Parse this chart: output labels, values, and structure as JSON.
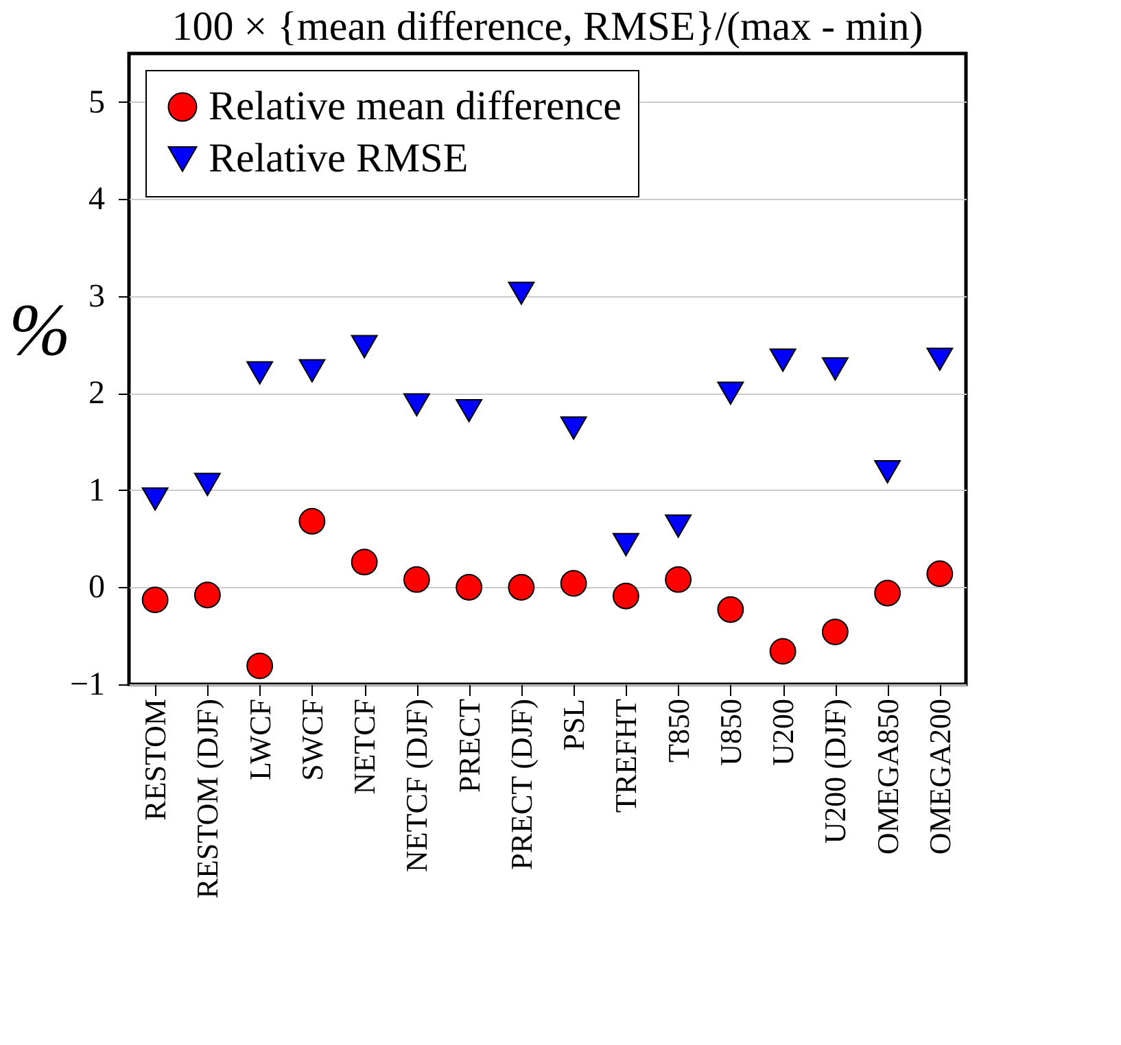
{
  "chart_data": {
    "type": "scatter",
    "title": "100 × {mean difference, RMSE}/(max - min)",
    "ylabel": "%",
    "categories": [
      "RESTOM",
      "RESTOM (DJF)",
      "LWCF",
      "SWCF",
      "NETCF",
      "NETCF (DJF)",
      "PRECT",
      "PRECT (DJF)",
      "PSL",
      "TREFHT",
      "T850",
      "U850",
      "U200",
      "U200 (DJF)",
      "OMEGA850",
      "OMEGA200"
    ],
    "series": [
      {
        "name": "Relative mean difference",
        "color": "#ff0000",
        "marker": "circle",
        "values": [
          -0.13,
          -0.08,
          -0.81,
          0.68,
          0.26,
          0.08,
          0.0,
          0.0,
          0.04,
          -0.09,
          0.08,
          -0.23,
          -0.66,
          -0.46,
          -0.06,
          0.14
        ]
      },
      {
        "name": "Relative RMSE",
        "color": "#0000ff",
        "marker": "triangle",
        "values": [
          0.91,
          1.06,
          2.21,
          2.23,
          2.48,
          1.88,
          1.82,
          3.03,
          1.64,
          0.44,
          0.63,
          2.0,
          2.34,
          2.25,
          1.19,
          2.35
        ]
      }
    ],
    "ylim": [
      -1,
      5.5
    ],
    "yticks": [
      {
        "value": -1,
        "label": "−1"
      },
      0,
      1,
      2,
      3,
      4,
      5
    ],
    "grid": "y",
    "legend": "top left"
  }
}
